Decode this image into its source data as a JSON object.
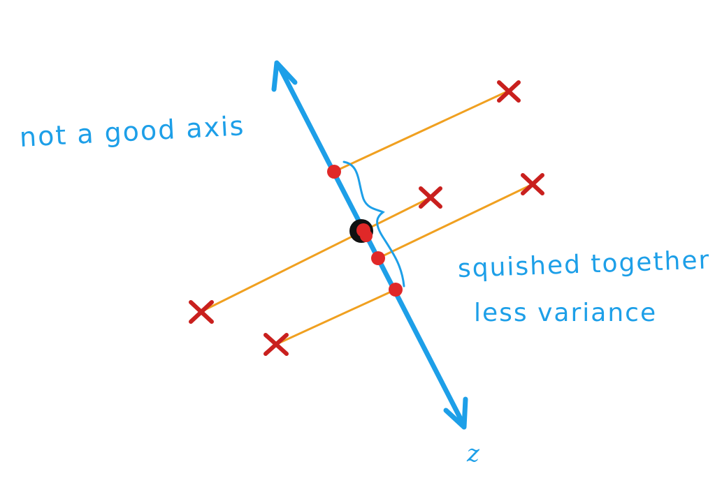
{
  "labels": {
    "not_good_axis": "not a good axis",
    "squished_line1": "squished together",
    "squished_line2": "less variance",
    "axis_name": "z"
  },
  "colors": {
    "axis": "#1d9fe8",
    "projection_line": "#f0a020",
    "data_point": "#c9201e",
    "projected_point": "#e02828",
    "mean_point": "#111111",
    "annotation": "#1d9fe8"
  },
  "icons": {
    "data_point": "x-mark-icon",
    "projection": "dot-icon"
  }
}
